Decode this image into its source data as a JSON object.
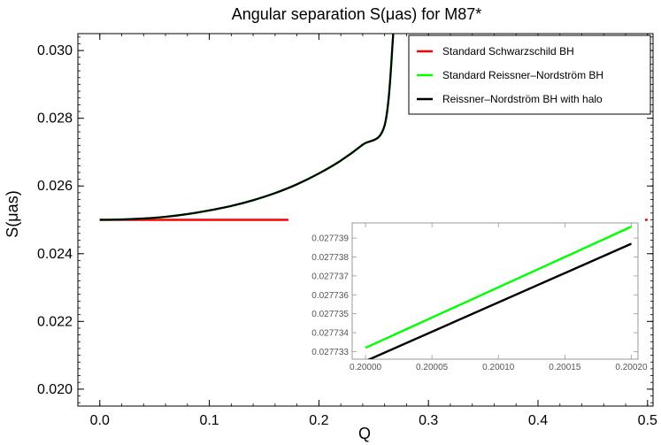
{
  "chart_data": {
    "type": "line",
    "title": "Angular separation S(μas) for M87*",
    "xlabel": "Q",
    "ylabel": "S(μas)",
    "xlim": [
      -0.02,
      0.505
    ],
    "ylim": [
      0.0195,
      0.0305
    ],
    "x_ticks": [
      0.0,
      0.1,
      0.2,
      0.3,
      0.4,
      0.5
    ],
    "x_tick_labels": [
      "0.0",
      "0.1",
      "0.2",
      "0.3",
      "0.4",
      "0.5"
    ],
    "y_ticks": [
      0.02,
      0.022,
      0.024,
      0.026,
      0.028,
      0.03
    ],
    "y_tick_labels": [
      "0.020",
      "0.022",
      "0.024",
      "0.026",
      "0.028",
      "0.030"
    ],
    "legend_position": "top-right",
    "series": [
      {
        "name": "Standard Schwarzschild BH",
        "color": "#ff0000",
        "x": [
          0.0,
          0.5
        ],
        "y": [
          0.025,
          0.025
        ]
      },
      {
        "name": "Standard Reissner–Nordström BH",
        "color": "#00ff00",
        "x": [
          0.0,
          0.02,
          0.04,
          0.06,
          0.08,
          0.1,
          0.12,
          0.14,
          0.16,
          0.18,
          0.2,
          0.22,
          0.24,
          0.26,
          0.268
        ],
        "y": [
          0.025,
          0.02501,
          0.02504,
          0.02509,
          0.02517,
          0.02528,
          0.02541,
          0.02558,
          0.02579,
          0.02605,
          0.02637,
          0.02675,
          0.02722,
          0.02779,
          0.03055
        ]
      },
      {
        "name": "Reissner–Nordström BH with halo",
        "color": "#000000",
        "x": [
          0.0,
          0.02,
          0.04,
          0.06,
          0.08,
          0.1,
          0.12,
          0.14,
          0.16,
          0.18,
          0.2,
          0.22,
          0.24,
          0.26,
          0.268
        ],
        "y": [
          0.025,
          0.02501,
          0.02504,
          0.02509,
          0.02517,
          0.02528,
          0.02541,
          0.02558,
          0.02579,
          0.02605,
          0.02637,
          0.02675,
          0.02722,
          0.02779,
          0.03055
        ]
      }
    ],
    "inset": {
      "xlim": [
        0.19999,
        0.200205
      ],
      "ylim": [
        0.0277326,
        0.0277398
      ],
      "x_ticks": [
        0.2,
        0.20005,
        0.2001,
        0.20015,
        0.2002
      ],
      "x_tick_labels": [
        "0.20000",
        "0.20005",
        "0.20010",
        "0.20015",
        "0.20020"
      ],
      "y_ticks": [
        0.027733,
        0.027734,
        0.027735,
        0.027736,
        0.027737,
        0.027738,
        0.027739
      ],
      "y_tick_labels": [
        "0.027733",
        "0.027734",
        "0.027735",
        "0.027736",
        "0.027737",
        "0.027738",
        "0.027739"
      ],
      "series": [
        {
          "name": "Standard Reissner–Nordström BH",
          "color": "#00ff00",
          "x": [
            0.2,
            0.2002
          ],
          "y": [
            0.0277332,
            0.0277396
          ]
        },
        {
          "name": "Reissner–Nordström BH with halo",
          "color": "#000000",
          "x": [
            0.2,
            0.2002
          ],
          "y": [
            0.0277325,
            0.0277387
          ]
        }
      ]
    }
  }
}
